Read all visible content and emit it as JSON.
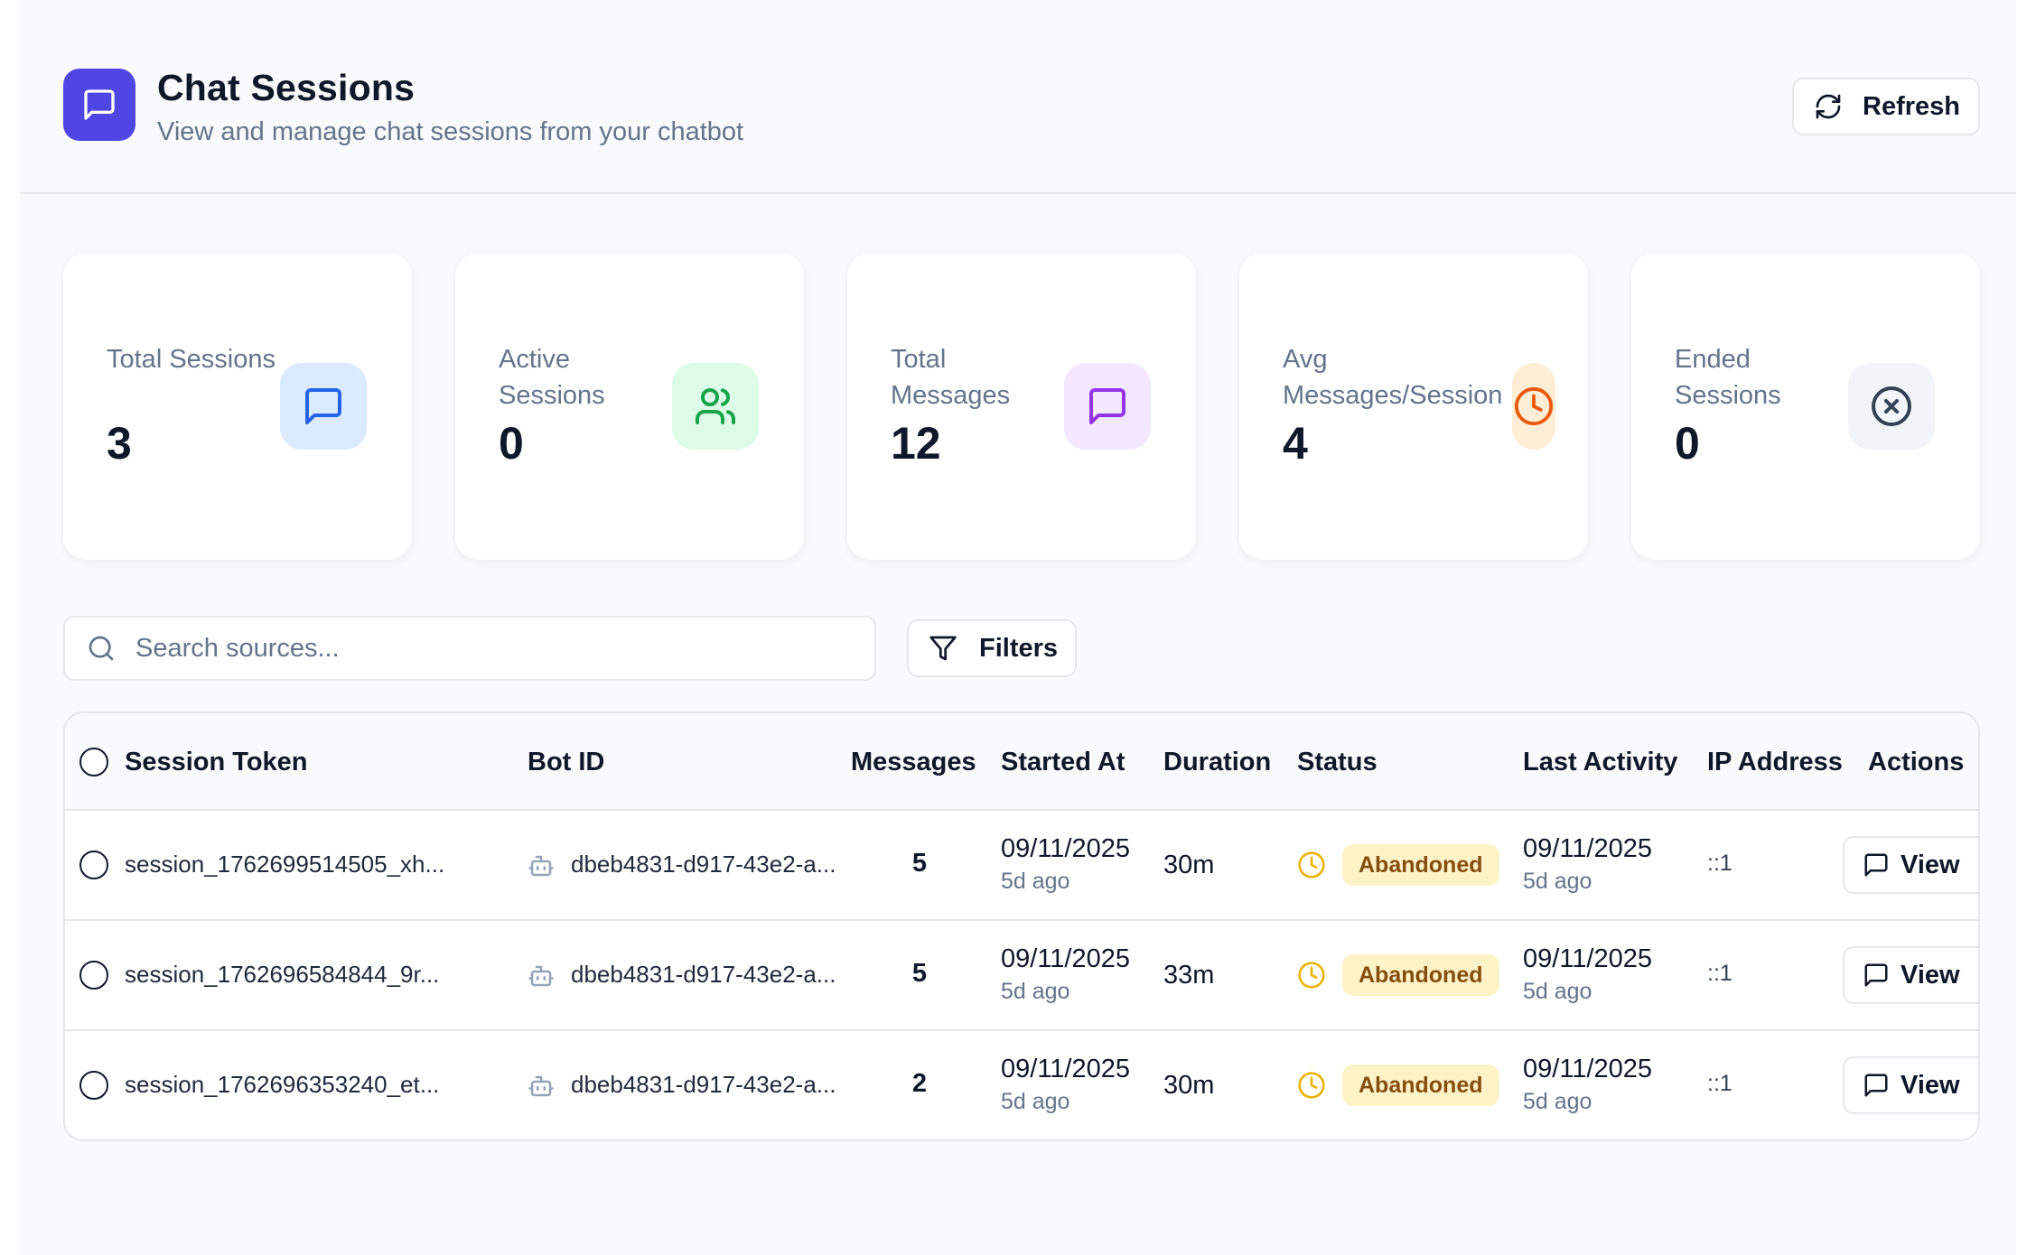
{
  "header": {
    "title": "Chat Sessions",
    "subtitle": "View and manage chat sessions from your chatbot",
    "icon": "chat-bubble-icon",
    "accent_color": "#4f46e5",
    "refresh_label": "Refresh"
  },
  "stats": [
    {
      "label": "Total Sessions",
      "value": "3",
      "icon": "message-square-icon",
      "icon_color": "#2563eb",
      "icon_bg": "#dbeafe"
    },
    {
      "label": "Active Sessions",
      "value": "0",
      "icon": "users-icon",
      "icon_color": "#16a34a",
      "icon_bg": "#dcfce7"
    },
    {
      "label": "Total Messages",
      "value": "12",
      "icon": "message-square-icon",
      "icon_color": "#9333ea",
      "icon_bg": "#f3e8ff"
    },
    {
      "label": "Avg Messages/Session",
      "value": "4",
      "icon": "clock-icon",
      "icon_color": "#ea580c",
      "icon_bg": "#ffedd5"
    },
    {
      "label": "Ended Sessions",
      "value": "0",
      "icon": "x-circle-icon",
      "icon_color": "#334155",
      "icon_bg": "#f1f5f9"
    }
  ],
  "search": {
    "placeholder": "Search sources...",
    "value": ""
  },
  "filters_label": "Filters",
  "table": {
    "columns": [
      "Session Token",
      "Bot ID",
      "Messages",
      "Started At",
      "Duration",
      "Status",
      "Last Activity",
      "IP Address",
      "Actions"
    ],
    "rows": [
      {
        "token": "session_1762699514505_xh...",
        "bot_id": "dbeb4831-d917-43e2-a...",
        "messages": "5",
        "started_at": "09/11/2025",
        "started_rel": "5d ago",
        "duration": "30m",
        "status": "Abandoned",
        "last_activity": "09/11/2025",
        "last_rel": "5d ago",
        "ip": "::1",
        "action": "View"
      },
      {
        "token": "session_1762696584844_9r...",
        "bot_id": "dbeb4831-d917-43e2-a...",
        "messages": "5",
        "started_at": "09/11/2025",
        "started_rel": "5d ago",
        "duration": "33m",
        "status": "Abandoned",
        "last_activity": "09/11/2025",
        "last_rel": "5d ago",
        "ip": "::1",
        "action": "View"
      },
      {
        "token": "session_1762696353240_et...",
        "bot_id": "dbeb4831-d917-43e2-a...",
        "messages": "2",
        "started_at": "09/11/2025",
        "started_rel": "5d ago",
        "duration": "30m",
        "status": "Abandoned",
        "last_activity": "09/11/2025",
        "last_rel": "5d ago",
        "ip": "::1",
        "action": "View"
      }
    ],
    "status_color": "#eab308",
    "badge_bg": "#fef3c7"
  }
}
